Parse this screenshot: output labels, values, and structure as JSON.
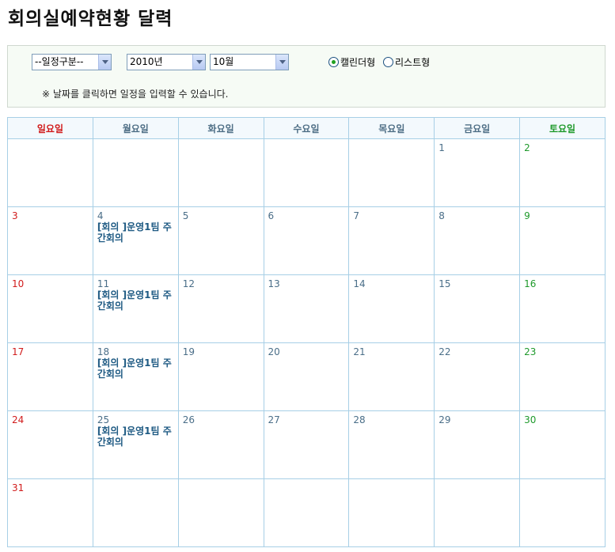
{
  "page": {
    "title": "회의실예약현황 달력"
  },
  "filters": {
    "category": "--일정구분--",
    "year": "2010년",
    "month": "10월",
    "view_calendar_label": "캘린더형",
    "view_list_label": "리스트형",
    "selected_view": "calendar",
    "notice": "※ 날짜를 클릭하면 일정을 입력할 수 있습니다."
  },
  "calendar": {
    "weekdays": [
      "일요일",
      "월요일",
      "화요일",
      "수요일",
      "목요일",
      "금요일",
      "토요일"
    ],
    "weeks": [
      [
        {
          "day": ""
        },
        {
          "day": ""
        },
        {
          "day": ""
        },
        {
          "day": ""
        },
        {
          "day": ""
        },
        {
          "day": "1"
        },
        {
          "day": "2"
        }
      ],
      [
        {
          "day": "3"
        },
        {
          "day": "4",
          "event": "[회의 ]운영1팀 주간회의"
        },
        {
          "day": "5"
        },
        {
          "day": "6"
        },
        {
          "day": "7"
        },
        {
          "day": "8"
        },
        {
          "day": "9"
        }
      ],
      [
        {
          "day": "10"
        },
        {
          "day": "11",
          "event": "[회의 ]운영1팀 주간회의"
        },
        {
          "day": "12"
        },
        {
          "day": "13"
        },
        {
          "day": "14"
        },
        {
          "day": "15"
        },
        {
          "day": "16"
        }
      ],
      [
        {
          "day": "17"
        },
        {
          "day": "18",
          "event": "[회의 ]운영1팀 주간회의"
        },
        {
          "day": "19"
        },
        {
          "day": "20"
        },
        {
          "day": "21"
        },
        {
          "day": "22"
        },
        {
          "day": "23"
        }
      ],
      [
        {
          "day": "24"
        },
        {
          "day": "25",
          "event": "[회의 ]운영1팀 주간회의"
        },
        {
          "day": "26"
        },
        {
          "day": "27"
        },
        {
          "day": "28"
        },
        {
          "day": "29"
        },
        {
          "day": "30"
        }
      ],
      [
        {
          "day": "31"
        },
        {
          "day": ""
        },
        {
          "day": ""
        },
        {
          "day": ""
        },
        {
          "day": ""
        },
        {
          "day": ""
        },
        {
          "day": ""
        }
      ]
    ]
  },
  "colors": {
    "sunday": "#d11c1c",
    "saturday": "#1f9a2c",
    "weekday": "#4a6e88",
    "event": "#1e5a83",
    "grid": "#a7cfe6"
  }
}
